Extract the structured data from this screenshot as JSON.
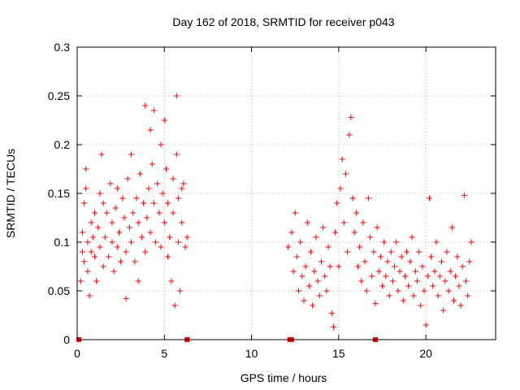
{
  "chart_data": {
    "type": "scatter",
    "title": "Day 162 of 2018, SRMTID for receiver p043",
    "xlabel": "GPS time / hours",
    "ylabel": "SRMTID / TECUs",
    "xlim": [
      0,
      24
    ],
    "ylim": [
      0,
      0.3
    ],
    "xticks": [
      0,
      5,
      10,
      15,
      20
    ],
    "xtick_labels": [
      "0",
      "5",
      "10",
      "15",
      "20"
    ],
    "yticks": [
      0,
      0.05,
      0.1,
      0.15,
      0.2,
      0.25,
      0.3
    ],
    "ytick_labels": [
      "0",
      "0.05",
      "0.1",
      "0.15",
      "0.2",
      "0.25",
      "0.3"
    ],
    "grid": true,
    "marker": "+",
    "color": "#ff0000",
    "zero_markers": {
      "marker": "square",
      "x": [
        0.1,
        6.3,
        12.2,
        12.3,
        17.1
      ]
    },
    "series": [
      {
        "name": "SRMTID",
        "points": [
          [
            0.2,
            0.06
          ],
          [
            0.3,
            0.09
          ],
          [
            0.3,
            0.11
          ],
          [
            0.4,
            0.08
          ],
          [
            0.4,
            0.14
          ],
          [
            0.5,
            0.175
          ],
          [
            0.5,
            0.155
          ],
          [
            0.6,
            0.1
          ],
          [
            0.6,
            0.07
          ],
          [
            0.7,
            0.045
          ],
          [
            0.8,
            0.12
          ],
          [
            0.8,
            0.09
          ],
          [
            0.9,
            0.105
          ],
          [
            1.0,
            0.13
          ],
          [
            1.0,
            0.085
          ],
          [
            1.1,
            0.06
          ],
          [
            1.2,
            0.115
          ],
          [
            1.3,
            0.15
          ],
          [
            1.3,
            0.095
          ],
          [
            1.4,
            0.19
          ],
          [
            1.5,
            0.14
          ],
          [
            1.5,
            0.075
          ],
          [
            1.6,
            0.105
          ],
          [
            1.7,
            0.13
          ],
          [
            1.8,
            0.085
          ],
          [
            1.9,
            0.16
          ],
          [
            2.0,
            0.12
          ],
          [
            2.0,
            0.1
          ],
          [
            2.1,
            0.07
          ],
          [
            2.2,
            0.135
          ],
          [
            2.3,
            0.155
          ],
          [
            2.3,
            0.095
          ],
          [
            2.4,
            0.11
          ],
          [
            2.5,
            0.08
          ],
          [
            2.6,
            0.145
          ],
          [
            2.7,
            0.125
          ],
          [
            2.8,
            0.09
          ],
          [
            2.8,
            0.042
          ],
          [
            2.9,
            0.165
          ],
          [
            3.0,
            0.115
          ],
          [
            3.1,
            0.19
          ],
          [
            3.1,
            0.1
          ],
          [
            3.2,
            0.13
          ],
          [
            3.3,
            0.08
          ],
          [
            3.4,
            0.145
          ],
          [
            3.5,
            0.12
          ],
          [
            3.5,
            0.06
          ],
          [
            3.6,
            0.17
          ],
          [
            3.7,
            0.105
          ],
          [
            3.8,
            0.14
          ],
          [
            3.9,
            0.24
          ],
          [
            3.9,
            0.09
          ],
          [
            4.0,
            0.125
          ],
          [
            4.1,
            0.155
          ],
          [
            4.2,
            0.215
          ],
          [
            4.2,
            0.11
          ],
          [
            4.3,
            0.18
          ],
          [
            4.4,
            0.14
          ],
          [
            4.4,
            0.235
          ],
          [
            4.5,
            0.1
          ],
          [
            4.6,
            0.16
          ],
          [
            4.7,
            0.13
          ],
          [
            4.8,
            0.2
          ],
          [
            4.8,
            0.095
          ],
          [
            4.9,
            0.15
          ],
          [
            5.0,
            0.225
          ],
          [
            5.0,
            0.12
          ],
          [
            5.1,
            0.175
          ],
          [
            5.2,
            0.14
          ],
          [
            5.2,
            0.085
          ],
          [
            5.3,
            0.105
          ],
          [
            5.4,
            0.06
          ],
          [
            5.5,
            0.165
          ],
          [
            5.5,
            0.13
          ],
          [
            5.6,
            0.035
          ],
          [
            5.7,
            0.25
          ],
          [
            5.7,
            0.19
          ],
          [
            5.8,
            0.145
          ],
          [
            5.8,
            0.1
          ],
          [
            5.9,
            0.05
          ],
          [
            6.0,
            0.155
          ],
          [
            6.0,
            0.12
          ],
          [
            6.1,
            0.16
          ],
          [
            6.2,
            0.095
          ],
          [
            6.3,
            0.105
          ],
          [
            12.1,
            0.095
          ],
          [
            12.3,
            0.11
          ],
          [
            12.4,
            0.07
          ],
          [
            12.5,
            0.13
          ],
          [
            12.6,
            0.085
          ],
          [
            12.7,
            0.05
          ],
          [
            12.8,
            0.1
          ],
          [
            12.9,
            0.065
          ],
          [
            13.0,
            0.04
          ],
          [
            13.1,
            0.075
          ],
          [
            13.2,
            0.12
          ],
          [
            13.3,
            0.055
          ],
          [
            13.4,
            0.09
          ],
          [
            13.5,
            0.035
          ],
          [
            13.6,
            0.07
          ],
          [
            13.7,
            0.105
          ],
          [
            13.8,
            0.06
          ],
          [
            13.9,
            0.045
          ],
          [
            14.0,
            0.08
          ],
          [
            14.1,
            0.115
          ],
          [
            14.2,
            0.065
          ],
          [
            14.3,
            0.05
          ],
          [
            14.4,
            0.095
          ],
          [
            14.5,
            0.075
          ],
          [
            14.6,
            0.027
          ],
          [
            14.7,
            0.013
          ],
          [
            14.8,
            0.11
          ],
          [
            14.9,
            0.14
          ],
          [
            15.0,
            0.075
          ],
          [
            15.1,
            0.155
          ],
          [
            15.2,
            0.185
          ],
          [
            15.3,
            0.12
          ],
          [
            15.4,
            0.17
          ],
          [
            15.5,
            0.09
          ],
          [
            15.6,
            0.21
          ],
          [
            15.7,
            0.228
          ],
          [
            15.8,
            0.145
          ],
          [
            15.9,
            0.11
          ],
          [
            16.0,
            0.13
          ],
          [
            16.1,
            0.075
          ],
          [
            16.2,
            0.095
          ],
          [
            16.3,
            0.06
          ],
          [
            16.4,
            0.12
          ],
          [
            16.5,
            0.08
          ],
          [
            16.6,
            0.05
          ],
          [
            16.7,
            0.145
          ],
          [
            16.8,
            0.105
          ],
          [
            16.9,
            0.065
          ],
          [
            17.0,
            0.09
          ],
          [
            17.1,
            0.037
          ],
          [
            17.2,
            0.115
          ],
          [
            17.3,
            0.07
          ],
          [
            17.4,
            0.085
          ],
          [
            17.5,
            0.055
          ],
          [
            17.6,
            0.1
          ],
          [
            17.7,
            0.065
          ],
          [
            17.8,
            0.08
          ],
          [
            17.9,
            0.045
          ],
          [
            18.0,
            0.09
          ],
          [
            18.1,
            0.06
          ],
          [
            18.2,
            0.075
          ],
          [
            18.3,
            0.1
          ],
          [
            18.4,
            0.05
          ],
          [
            18.5,
            0.07
          ],
          [
            18.6,
            0.085
          ],
          [
            18.7,
            0.04
          ],
          [
            18.8,
            0.065
          ],
          [
            18.9,
            0.09
          ],
          [
            19.0,
            0.055
          ],
          [
            19.1,
            0.08
          ],
          [
            19.2,
            0.105
          ],
          [
            19.3,
            0.045
          ],
          [
            19.4,
            0.07
          ],
          [
            19.5,
            0.06
          ],
          [
            19.6,
            0.09
          ],
          [
            19.7,
            0.035
          ],
          [
            19.8,
            0.075
          ],
          [
            19.9,
            0.05
          ],
          [
            20.0,
            0.015
          ],
          [
            20.1,
            0.065
          ],
          [
            20.2,
            0.145
          ],
          [
            20.3,
            0.085
          ],
          [
            20.4,
            0.055
          ],
          [
            20.5,
            0.07
          ],
          [
            20.6,
            0.1
          ],
          [
            20.7,
            0.045
          ],
          [
            20.8,
            0.065
          ],
          [
            20.9,
            0.08
          ],
          [
            21.0,
            0.03
          ],
          [
            21.1,
            0.06
          ],
          [
            21.2,
            0.09
          ],
          [
            21.3,
            0.05
          ],
          [
            21.4,
            0.07
          ],
          [
            21.5,
            0.115
          ],
          [
            21.6,
            0.04
          ],
          [
            21.7,
            0.065
          ],
          [
            21.8,
            0.085
          ],
          [
            21.9,
            0.055
          ],
          [
            22.0,
            0.035
          ],
          [
            22.1,
            0.075
          ],
          [
            22.2,
            0.148
          ],
          [
            22.3,
            0.06
          ],
          [
            22.4,
            0.045
          ],
          [
            22.5,
            0.08
          ],
          [
            22.6,
            0.1
          ]
        ]
      }
    ]
  }
}
